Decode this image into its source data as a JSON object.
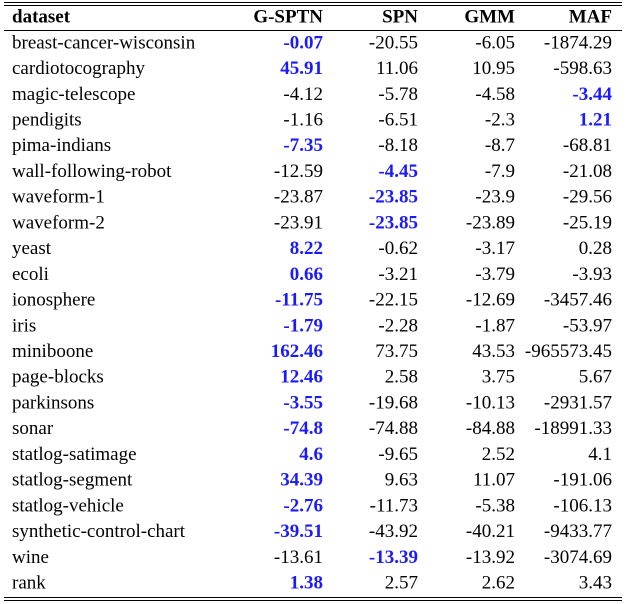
{
  "table": {
    "header": [
      "dataset",
      "G-SPTN",
      "SPN",
      "GMM",
      "MAF"
    ],
    "highlight_color": "#1a1aff",
    "rows": [
      {
        "dataset": "breast-cancer-wisconsin",
        "values": [
          "-0.07",
          "-20.55",
          "-6.05",
          "-1874.29"
        ],
        "best": 0
      },
      {
        "dataset": "cardiotocography",
        "values": [
          "45.91",
          "11.06",
          "10.95",
          "-598.63"
        ],
        "best": 0
      },
      {
        "dataset": "magic-telescope",
        "values": [
          "-4.12",
          "-5.78",
          "-4.58",
          "-3.44"
        ],
        "best": 3
      },
      {
        "dataset": "pendigits",
        "values": [
          "-1.16",
          "-6.51",
          "-2.3",
          "1.21"
        ],
        "best": 3
      },
      {
        "dataset": "pima-indians",
        "values": [
          "-7.35",
          "-8.18",
          "-8.7",
          "-68.81"
        ],
        "best": 0
      },
      {
        "dataset": "wall-following-robot",
        "values": [
          "-12.59",
          "-4.45",
          "-7.9",
          "-21.08"
        ],
        "best": 1
      },
      {
        "dataset": "waveform-1",
        "values": [
          "-23.87",
          "-23.85",
          "-23.9",
          "-29.56"
        ],
        "best": 1
      },
      {
        "dataset": "waveform-2",
        "values": [
          "-23.91",
          "-23.85",
          "-23.89",
          "-25.19"
        ],
        "best": 1
      },
      {
        "dataset": "yeast",
        "values": [
          "8.22",
          "-0.62",
          "-3.17",
          "0.28"
        ],
        "best": 0
      },
      {
        "dataset": "ecoli",
        "values": [
          "0.66",
          "-3.21",
          "-3.79",
          "-3.93"
        ],
        "best": 0
      },
      {
        "dataset": "ionosphere",
        "values": [
          "-11.75",
          "-22.15",
          "-12.69",
          "-3457.46"
        ],
        "best": 0
      },
      {
        "dataset": "iris",
        "values": [
          "-1.79",
          "-2.28",
          "-1.87",
          "-53.97"
        ],
        "best": 0
      },
      {
        "dataset": "miniboone",
        "values": [
          "162.46",
          "73.75",
          "43.53",
          "-965573.45"
        ],
        "best": 0
      },
      {
        "dataset": "page-blocks",
        "values": [
          "12.46",
          "2.58",
          "3.75",
          "5.67"
        ],
        "best": 0
      },
      {
        "dataset": "parkinsons",
        "values": [
          "-3.55",
          "-19.68",
          "-10.13",
          "-2931.57"
        ],
        "best": 0
      },
      {
        "dataset": "sonar",
        "values": [
          "-74.8",
          "-74.88",
          "-84.88",
          "-18991.33"
        ],
        "best": 0
      },
      {
        "dataset": "statlog-satimage",
        "values": [
          "4.6",
          "-9.65",
          "2.52",
          "4.1"
        ],
        "best": 0
      },
      {
        "dataset": "statlog-segment",
        "values": [
          "34.39",
          "9.63",
          "11.07",
          "-191.06"
        ],
        "best": 0
      },
      {
        "dataset": "statlog-vehicle",
        "values": [
          "-2.76",
          "-11.73",
          "-5.38",
          "-106.13"
        ],
        "best": 0
      },
      {
        "dataset": "synthetic-control-chart",
        "values": [
          "-39.51",
          "-43.92",
          "-40.21",
          "-9433.77"
        ],
        "best": 0
      },
      {
        "dataset": "wine",
        "values": [
          "-13.61",
          "-13.39",
          "-13.92",
          "-3074.69"
        ],
        "best": 1
      },
      {
        "dataset": "rank",
        "values": [
          "1.38",
          "2.57",
          "2.62",
          "3.43"
        ],
        "best": 0
      }
    ]
  }
}
